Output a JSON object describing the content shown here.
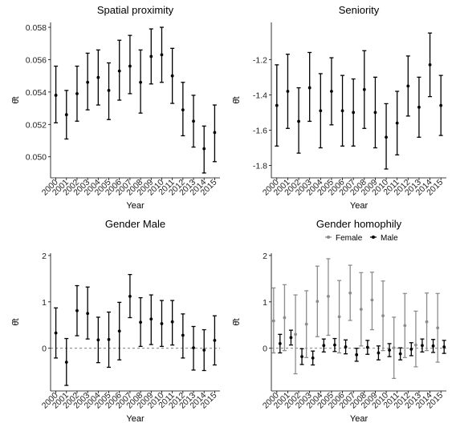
{
  "chart_data": [
    {
      "type": "errorbar",
      "title": "Spatial proximity",
      "xlabel": "Year",
      "ylabel": "θ̂t",
      "categories": [
        "2000",
        "2001",
        "2002",
        "2003",
        "2004",
        "2005",
        "2006",
        "2007",
        "2008",
        "2009",
        "2010",
        "2011",
        "2012",
        "2013",
        "2014",
        "2015"
      ],
      "ylim": [
        0.0487,
        0.0583
      ],
      "yticks": [
        0.05,
        0.052,
        0.054,
        0.056,
        0.058
      ],
      "ytick_labels": [
        "0.050",
        "0.052",
        "0.054",
        "0.056",
        "0.058"
      ],
      "zero_line": false,
      "series": [
        {
          "color": "#000000",
          "values": [
            0.0538,
            0.0526,
            0.0539,
            0.0546,
            0.0549,
            0.0541,
            0.0553,
            0.0556,
            0.0546,
            0.0562,
            0.0563,
            0.055,
            0.0529,
            0.0522,
            0.0505,
            0.0515
          ],
          "lower": [
            0.0521,
            0.0511,
            0.0522,
            0.0529,
            0.0532,
            0.0523,
            0.0535,
            0.0539,
            0.0527,
            0.0545,
            0.0546,
            0.0533,
            0.0513,
            0.0506,
            0.049,
            0.0497
          ],
          "upper": [
            0.0556,
            0.0541,
            0.0556,
            0.0564,
            0.0566,
            0.0558,
            0.0572,
            0.0575,
            0.0566,
            0.0579,
            0.058,
            0.0567,
            0.0546,
            0.0538,
            0.0519,
            0.0532
          ]
        }
      ]
    },
    {
      "type": "errorbar",
      "title": "Seniority",
      "xlabel": "Year",
      "ylabel": "θ̂t",
      "categories": [
        "2000",
        "2001",
        "2002",
        "2003",
        "2004",
        "2005",
        "2006",
        "2007",
        "2008",
        "2009",
        "2010",
        "2011",
        "2012",
        "2013",
        "2014",
        "2015"
      ],
      "ylim": [
        -1.87,
        -0.99
      ],
      "yticks": [
        -1.8,
        -1.6,
        -1.4,
        -1.2
      ],
      "ytick_labels": [
        "-1.8",
        "-1.6",
        "-1.4",
        "-1.2"
      ],
      "zero_line": false,
      "series": [
        {
          "color": "#000000",
          "values": [
            -1.46,
            -1.38,
            -1.55,
            -1.36,
            -1.49,
            -1.38,
            -1.49,
            -1.5,
            -1.37,
            -1.5,
            -1.64,
            -1.56,
            -1.35,
            -1.47,
            -1.23,
            -1.46
          ],
          "lower": [
            -1.69,
            -1.59,
            -1.73,
            -1.55,
            -1.7,
            -1.57,
            -1.69,
            -1.69,
            -1.59,
            -1.7,
            -1.82,
            -1.74,
            -1.52,
            -1.64,
            -1.41,
            -1.63
          ],
          "upper": [
            -1.23,
            -1.17,
            -1.36,
            -1.16,
            -1.28,
            -1.19,
            -1.29,
            -1.31,
            -1.15,
            -1.3,
            -1.45,
            -1.38,
            -1.18,
            -1.3,
            -1.05,
            -1.29
          ]
        }
      ]
    },
    {
      "type": "errorbar",
      "title": "Gender Male",
      "xlabel": "Year",
      "ylabel": "θ̂t",
      "categories": [
        "2000",
        "2001",
        "2002",
        "2003",
        "2004",
        "2005",
        "2006",
        "2007",
        "2008",
        "2009",
        "2010",
        "2011",
        "2012",
        "2013",
        "2014",
        "2015"
      ],
      "ylim": [
        -0.92,
        2.05
      ],
      "yticks": [
        0,
        1,
        2
      ],
      "ytick_labels": [
        "0",
        "1",
        "2"
      ],
      "zero_line": true,
      "series": [
        {
          "color": "#000000",
          "values": [
            0.33,
            -0.3,
            0.81,
            0.75,
            0.18,
            0.19,
            0.37,
            1.12,
            0.56,
            0.63,
            0.53,
            0.57,
            0.28,
            0.01,
            -0.04,
            0.17
          ],
          "lower": [
            -0.21,
            -0.8,
            0.27,
            0.2,
            -0.31,
            -0.41,
            -0.25,
            0.66,
            0.04,
            0.08,
            0.04,
            0.07,
            -0.21,
            -0.47,
            -0.48,
            -0.36
          ],
          "upper": [
            0.87,
            0.21,
            1.35,
            1.32,
            0.67,
            0.78,
            0.99,
            1.59,
            1.09,
            1.15,
            1.03,
            1.03,
            0.74,
            0.47,
            0.4,
            0.7
          ]
        }
      ]
    },
    {
      "type": "errorbar",
      "title": "Gender homophily",
      "xlabel": "Year",
      "ylabel": "θ̂t",
      "categories": [
        "2000",
        "2001",
        "2002",
        "2003",
        "2004",
        "2005",
        "2006",
        "2007",
        "2008",
        "2009",
        "2010",
        "2011",
        "2012",
        "2013",
        "2014",
        "2015"
      ],
      "ylim": [
        -0.92,
        2.05
      ],
      "yticks": [
        0,
        1,
        2
      ],
      "ytick_labels": [
        "0",
        "1",
        "2"
      ],
      "zero_line": true,
      "legend": "top",
      "series": [
        {
          "name": "Female",
          "color": "#8c8c8c",
          "values": [
            0.59,
            0.66,
            0.3,
            0.52,
            1.01,
            1.12,
            0.68,
            1.19,
            0.84,
            1.04,
            0.7,
            0.01,
            0.49,
            0.07,
            0.57,
            0.44
          ],
          "lower": [
            -0.1,
            -0.05,
            -0.55,
            -0.2,
            0.25,
            0.28,
            -0.1,
            0.6,
            0.05,
            0.4,
            -0.05,
            -0.65,
            -0.2,
            -0.4,
            -0.05,
            -0.3
          ],
          "upper": [
            1.3,
            1.37,
            1.15,
            1.24,
            1.77,
            1.93,
            1.46,
            1.79,
            1.63,
            1.64,
            1.45,
            0.67,
            1.18,
            0.8,
            1.19,
            1.18
          ]
        },
        {
          "name": "Male",
          "color": "#000000",
          "values": [
            0.1,
            0.23,
            -0.18,
            -0.21,
            0.06,
            0.07,
            0.03,
            -0.14,
            0.02,
            -0.1,
            -0.04,
            -0.12,
            -0.02,
            0.06,
            0.05,
            0.03
          ],
          "lower": [
            -0.1,
            0.07,
            -0.35,
            -0.36,
            -0.08,
            -0.07,
            -0.12,
            -0.28,
            -0.13,
            -0.25,
            -0.18,
            -0.25,
            -0.16,
            -0.08,
            -0.09,
            -0.11
          ],
          "upper": [
            0.3,
            0.39,
            -0.01,
            -0.06,
            0.2,
            0.21,
            0.18,
            0.0,
            0.17,
            0.05,
            0.1,
            0.01,
            0.12,
            0.2,
            0.19,
            0.17
          ]
        }
      ]
    }
  ]
}
